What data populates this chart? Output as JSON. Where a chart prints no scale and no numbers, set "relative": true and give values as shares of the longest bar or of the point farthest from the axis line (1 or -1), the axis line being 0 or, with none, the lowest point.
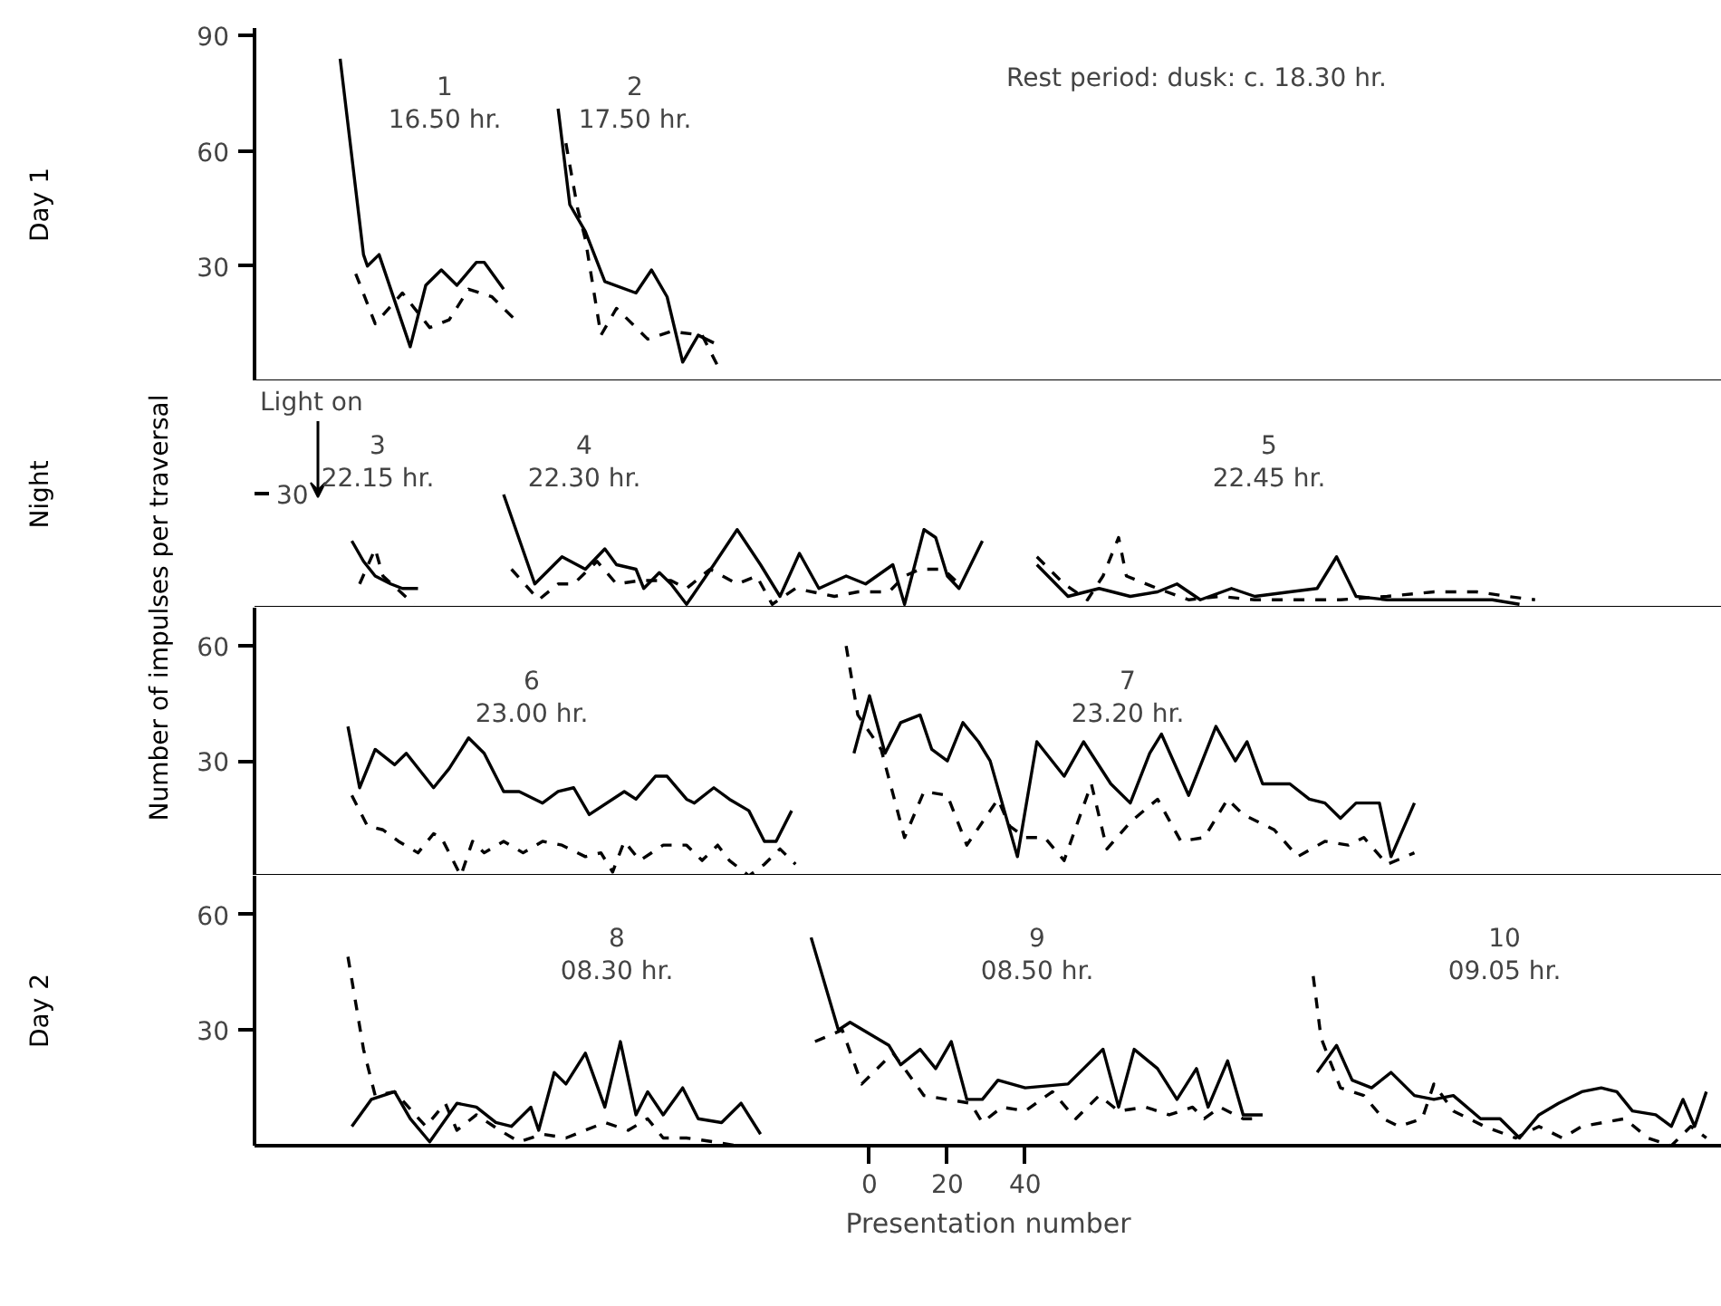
{
  "chart_data": [
    {
      "type": "line",
      "xlim": [
        -158,
        219
      ],
      "ylim": [
        0,
        92
      ],
      "yticks": [
        30,
        60,
        90
      ],
      "tick_labels": "y",
      "annotations": [
        "Day 1",
        "Rest period: dusk: c. 18.30 hr.",
        "1\n16.50 hr.",
        "2\n17.50 hr."
      ],
      "series": [
        {
          "color": "#000000",
          "line_style": "solid",
          "x": [
            -136,
            -130,
            -129,
            -126,
            -118,
            -114,
            -110,
            -106,
            -101,
            -99,
            -94
          ],
          "values": [
            84,
            33,
            30,
            33,
            9,
            25,
            29,
            25,
            31,
            31,
            24
          ]
        },
        {
          "color": "#000000",
          "line_style": "dashed",
          "x": [
            -132,
            -127,
            -120,
            -113,
            -108,
            -103,
            -97,
            -91
          ],
          "values": [
            28,
            15,
            23,
            14,
            16,
            24,
            22,
            16
          ]
        },
        {
          "color": "#000000",
          "line_style": "solid",
          "x": [
            -80,
            -77,
            -73,
            -68,
            -60,
            -56,
            -52,
            -48,
            -44,
            -40
          ],
          "values": [
            71,
            46,
            39,
            26,
            23,
            29,
            22,
            5,
            12,
            10
          ]
        },
        {
          "color": "#000000",
          "line_style": "dashed",
          "x": [
            -78,
            -75,
            -73,
            -69,
            -65,
            -57,
            -51,
            -43,
            -39
          ],
          "values": [
            62,
            45,
            37,
            12,
            19,
            11,
            13,
            12,
            4
          ]
        }
      ]
    },
    {
      "type": "line",
      "xlim": [
        -158,
        219
      ],
      "relative": true,
      "tick_labels": "y",
      "ylabel": "Number of impulses per traversal",
      "annotations": [
        "Night",
        "Light on",
        "3\n22.15 hr.",
        "4\n22.30 hr.",
        "5\n22.45 hr.",
        "30"
      ],
      "series": [
        {
          "color": "#000000",
          "line_style": "solid",
          "x": [
            -133,
            -130,
            -127,
            -123,
            -120,
            -116
          ],
          "values": [
            0.59,
            0.41,
            0.28,
            0.21,
            0.17,
            0.17
          ]
        },
        {
          "color": "#000000",
          "line_style": "dashed",
          "x": [
            -131,
            -127,
            -125,
            -117
          ],
          "values": [
            0.21,
            0.52,
            0.28,
            0.03
          ]
        },
        {
          "color": "#000000",
          "line_style": "solid",
          "x": [
            -94,
            -86,
            -79,
            -73,
            -68,
            -65,
            -60,
            -58,
            -54,
            -51,
            -47,
            -40,
            -34,
            -28,
            -23,
            -18,
            -13,
            -6,
            -1,
            6,
            9,
            14,
            17,
            20,
            23,
            29
          ],
          "values": [
            1,
            0.21,
            0.45,
            0.34,
            0.52,
            0.38,
            0.34,
            0.17,
            0.31,
            0.21,
            0.03,
            0.38,
            0.69,
            0.38,
            0.1,
            0.48,
            0.17,
            0.28,
            0.21,
            0.38,
            0.03,
            0.69,
            0.62,
            0.28,
            0.17,
            0.59
          ]
        },
        {
          "color": "#000000",
          "line_style": "dashed",
          "x": [
            -92,
            -85,
            -80,
            -76,
            -70,
            -65,
            -59,
            -51,
            -47,
            -41,
            -34,
            -29,
            -25,
            -19,
            -9,
            -3,
            5,
            9,
            13,
            19,
            23
          ],
          "values": [
            0.34,
            0.07,
            0.21,
            0.21,
            0.41,
            0.21,
            0.24,
            0.24,
            0.17,
            0.34,
            0.21,
            0.28,
            0.03,
            0.17,
            0.1,
            0.14,
            0.14,
            0.28,
            0.34,
            0.34,
            0.21
          ]
        },
        {
          "color": "#000000",
          "line_style": "solid",
          "x": [
            43,
            51,
            59,
            67,
            74,
            79,
            85,
            93,
            99,
            108,
            115,
            120,
            125,
            133,
            143,
            152,
            160,
            167
          ],
          "values": [
            0.38,
            0.1,
            0.17,
            0.1,
            0.14,
            0.21,
            0.07,
            0.17,
            0.1,
            0.14,
            0.17,
            0.45,
            0.1,
            0.07,
            0.07,
            0.07,
            0.07,
            0.03
          ]
        },
        {
          "color": "#000000",
          "line_style": "dashed",
          "x": [
            43,
            50,
            56,
            60,
            64,
            66,
            74,
            82,
            90,
            99,
            108,
            121,
            133,
            145,
            156,
            164,
            171
          ],
          "values": [
            0.45,
            0.21,
            0.07,
            0.28,
            0.62,
            0.28,
            0.17,
            0.07,
            0.1,
            0.07,
            0.07,
            0.07,
            0.1,
            0.14,
            0.14,
            0.1,
            0.07
          ]
        }
      ]
    },
    {
      "type": "line",
      "xlim": [
        -158,
        219
      ],
      "ylim": [
        0,
        70
      ],
      "yticks": [
        30,
        60
      ],
      "tick_labels": "y",
      "annotations": [
        "6\n23.00 hr.",
        "7\n23.20 hr."
      ],
      "series": [
        {
          "color": "#000000",
          "line_style": "solid",
          "x": [
            -134,
            -131,
            -127,
            -122,
            -119,
            -112,
            -108,
            -103,
            -99,
            -94,
            -90,
            -84,
            -80,
            -76,
            -72,
            -63,
            -60,
            -55,
            -52,
            -47,
            -45,
            -40,
            -36,
            -31,
            -27,
            -24,
            -20
          ],
          "values": [
            39,
            23,
            33,
            29,
            32,
            23,
            28,
            36,
            32,
            22,
            22,
            19,
            22,
            23,
            16,
            22,
            20,
            26,
            26,
            20,
            19,
            23,
            20,
            17,
            9,
            9,
            17
          ]
        },
        {
          "color": "#000000",
          "line_style": "dashed",
          "x": [
            -133,
            -129,
            -125,
            -121,
            -116,
            -112,
            -110,
            -105,
            -102,
            -99,
            -94,
            -89,
            -84,
            -79,
            -73,
            -69,
            -66,
            -63,
            -59,
            -53,
            -47,
            -43,
            -39,
            -36,
            -31,
            -27,
            -23,
            -19
          ],
          "values": [
            21,
            13,
            12,
            9,
            6,
            11,
            10,
            0,
            9,
            6,
            9,
            6,
            9,
            8,
            5,
            6,
            1,
            9,
            4,
            8,
            8,
            4,
            8,
            4,
            0,
            3,
            7,
            3
          ]
        },
        {
          "color": "#000000",
          "line_style": "solid",
          "x": [
            -4,
            0,
            4,
            8,
            13,
            16,
            20,
            24,
            28,
            31,
            38,
            43,
            50,
            55,
            62,
            67,
            72,
            75,
            82,
            89,
            94,
            97,
            101,
            108,
            113,
            117,
            121,
            125,
            131,
            134,
            140
          ],
          "values": [
            32,
            47,
            32,
            40,
            42,
            33,
            30,
            40,
            35,
            30,
            5,
            35,
            26,
            35,
            24,
            19,
            32,
            37,
            21,
            39,
            30,
            35,
            24,
            24,
            20,
            19,
            15,
            19,
            19,
            5,
            19
          ]
        },
        {
          "color": "#000000",
          "line_style": "dashed",
          "x": [
            -6,
            -3,
            3,
            9,
            14,
            20,
            25,
            33,
            36,
            40,
            45,
            50,
            57,
            61,
            67,
            74,
            80,
            86,
            92,
            96,
            104,
            110,
            117,
            123,
            127,
            133,
            140
          ],
          "values": [
            60,
            42,
            33,
            10,
            22,
            21,
            8,
            20,
            13,
            10,
            10,
            4,
            24,
            7,
            14,
            20,
            9,
            10,
            20,
            16,
            12,
            5,
            9,
            8,
            10,
            3,
            6
          ]
        }
      ]
    },
    {
      "type": "line",
      "xlim": [
        -158,
        219
      ],
      "ylim": [
        0,
        70
      ],
      "yticks": [
        30,
        60
      ],
      "xticks": [
        0,
        20,
        40
      ],
      "xlabel": "Presentation number",
      "annotations": [
        "Day 2",
        "8\n08.30 hr.",
        "9\n08.50 hr.",
        "10\n09.05 hr."
      ],
      "series": [
        {
          "color": "#000000",
          "line_style": "solid",
          "x": [
            -133,
            -128,
            -122,
            -118,
            -113,
            -106,
            -101,
            -96,
            -92,
            -87,
            -85,
            -81,
            -78,
            -73,
            -68,
            -64,
            -60,
            -57,
            -53,
            -48,
            -44,
            -38,
            -33,
            -28
          ],
          "values": [
            5,
            12,
            14,
            7,
            1,
            11,
            10,
            6,
            5,
            10,
            4,
            19,
            16,
            24,
            10,
            27,
            8,
            14,
            8,
            15,
            7,
            6,
            11,
            3
          ]
        },
        {
          "color": "#000000",
          "line_style": "dashed",
          "x": [
            -134,
            -130,
            -127,
            -122,
            -114,
            -109,
            -106,
            -101,
            -95,
            -90,
            -84,
            -78,
            -68,
            -62,
            -57,
            -53,
            -47,
            -40,
            -34,
            -28
          ],
          "values": [
            49,
            25,
            13,
            14,
            5,
            11,
            4,
            8,
            4,
            1,
            3,
            2,
            6,
            4,
            7,
            2,
            2,
            1,
            0,
            0
          ]
        },
        {
          "color": "#000000",
          "line_style": "solid",
          "x": [
            -15,
            -8,
            -5,
            5,
            8,
            13,
            17,
            21,
            25,
            29,
            33,
            40,
            51,
            57,
            60,
            64,
            68,
            74,
            79,
            84,
            87,
            92,
            96,
            101
          ],
          "values": [
            54,
            30,
            32,
            26,
            21,
            25,
            20,
            27,
            12,
            12,
            17,
            15,
            16,
            22,
            25,
            10,
            25,
            20,
            12,
            20,
            10,
            22,
            8,
            8
          ]
        },
        {
          "color": "#000000",
          "line_style": "dashed",
          "x": [
            -14,
            -7,
            -2,
            6,
            9,
            14,
            20,
            26,
            29,
            34,
            40,
            47,
            53,
            59,
            64,
            71,
            77,
            83,
            86,
            90,
            96,
            101
          ],
          "values": [
            27,
            30,
            16,
            24,
            20,
            13,
            12,
            11,
            6,
            10,
            9,
            14,
            7,
            13,
            9,
            10,
            8,
            10,
            7,
            10,
            7,
            7
          ]
        },
        {
          "color": "#000000",
          "line_style": "solid",
          "x": [
            115,
            120,
            124,
            129,
            134,
            140,
            145,
            150,
            157,
            162,
            167,
            172,
            177,
            183,
            188,
            192,
            196,
            202,
            206,
            209,
            212,
            215
          ],
          "values": [
            19,
            26,
            17,
            15,
            19,
            13,
            12,
            13,
            7,
            7,
            2,
            8,
            11,
            14,
            15,
            14,
            9,
            8,
            5,
            12,
            5,
            14
          ]
        },
        {
          "color": "#000000",
          "line_style": "dashed",
          "x": [
            114,
            116,
            121,
            127,
            132,
            136,
            142,
            145,
            150,
            158,
            166,
            172,
            178,
            183,
            194,
            200,
            206,
            211,
            215
          ],
          "values": [
            44,
            28,
            15,
            13,
            7,
            5,
            7,
            16,
            9,
            5,
            2,
            5,
            2,
            5,
            7,
            2,
            0,
            5,
            2
          ]
        }
      ]
    }
  ]
}
